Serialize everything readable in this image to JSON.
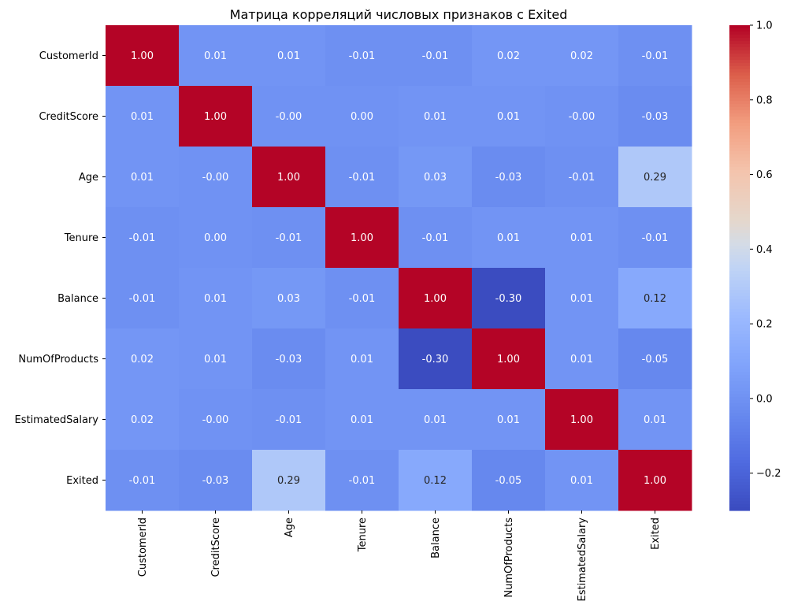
{
  "chart_data": {
    "type": "heatmap",
    "title": "Матрица корреляций числовых признаков с Exited",
    "rows": [
      "CustomerId",
      "CreditScore",
      "Age",
      "Tenure",
      "Balance",
      "NumOfProducts",
      "EstimatedSalary",
      "Exited"
    ],
    "columns": [
      "CustomerId",
      "CreditScore",
      "Age",
      "Tenure",
      "Balance",
      "NumOfProducts",
      "EstimatedSalary",
      "Exited"
    ],
    "values": [
      [
        1.0,
        0.01,
        0.01,
        -0.01,
        -0.01,
        0.02,
        0.02,
        -0.01
      ],
      [
        0.01,
        1.0,
        -0.0,
        0.0,
        0.01,
        0.01,
        -0.0,
        -0.03
      ],
      [
        0.01,
        -0.0,
        1.0,
        -0.01,
        0.03,
        -0.03,
        -0.01,
        0.29
      ],
      [
        -0.01,
        0.0,
        -0.01,
        1.0,
        -0.01,
        0.01,
        0.01,
        -0.01
      ],
      [
        -0.01,
        0.01,
        0.03,
        -0.01,
        1.0,
        -0.3,
        0.01,
        0.12
      ],
      [
        0.02,
        0.01,
        -0.03,
        0.01,
        -0.3,
        1.0,
        0.01,
        -0.05
      ],
      [
        0.02,
        -0.0,
        -0.01,
        0.01,
        0.01,
        0.01,
        1.0,
        0.01
      ],
      [
        -0.01,
        -0.03,
        0.29,
        -0.01,
        0.12,
        -0.05,
        0.01,
        1.0
      ]
    ],
    "annotations": [
      [
        "1.00",
        "0.01",
        "0.01",
        "-0.01",
        "-0.01",
        "0.02",
        "0.02",
        "-0.01"
      ],
      [
        "0.01",
        "1.00",
        "-0.00",
        "0.00",
        "0.01",
        "0.01",
        "-0.00",
        "-0.03"
      ],
      [
        "0.01",
        "-0.00",
        "1.00",
        "-0.01",
        "0.03",
        "-0.03",
        "-0.01",
        "0.29"
      ],
      [
        "-0.01",
        "0.00",
        "-0.01",
        "1.00",
        "-0.01",
        "0.01",
        "0.01",
        "-0.01"
      ],
      [
        "-0.01",
        "0.01",
        "0.03",
        "-0.01",
        "1.00",
        "-0.30",
        "0.01",
        "0.12"
      ],
      [
        "0.02",
        "0.01",
        "-0.03",
        "0.01",
        "-0.30",
        "1.00",
        "0.01",
        "-0.05"
      ],
      [
        "0.02",
        "-0.00",
        "-0.01",
        "0.01",
        "0.01",
        "0.01",
        "1.00",
        "0.01"
      ],
      [
        "-0.01",
        "-0.03",
        "0.29",
        "-0.01",
        "0.12",
        "-0.05",
        "0.01",
        "1.00"
      ]
    ],
    "colormap": "coolwarm",
    "vmin": -0.3,
    "vmax": 1.0,
    "colorbar": {
      "ticks": [
        -0.2,
        0.0,
        0.2,
        0.4,
        0.6,
        0.8,
        1.0
      ],
      "tick_labels": [
        "−0.2",
        "0.0",
        "0.2",
        "0.4",
        "0.6",
        "0.8",
        "1.0"
      ],
      "position": "right"
    }
  }
}
